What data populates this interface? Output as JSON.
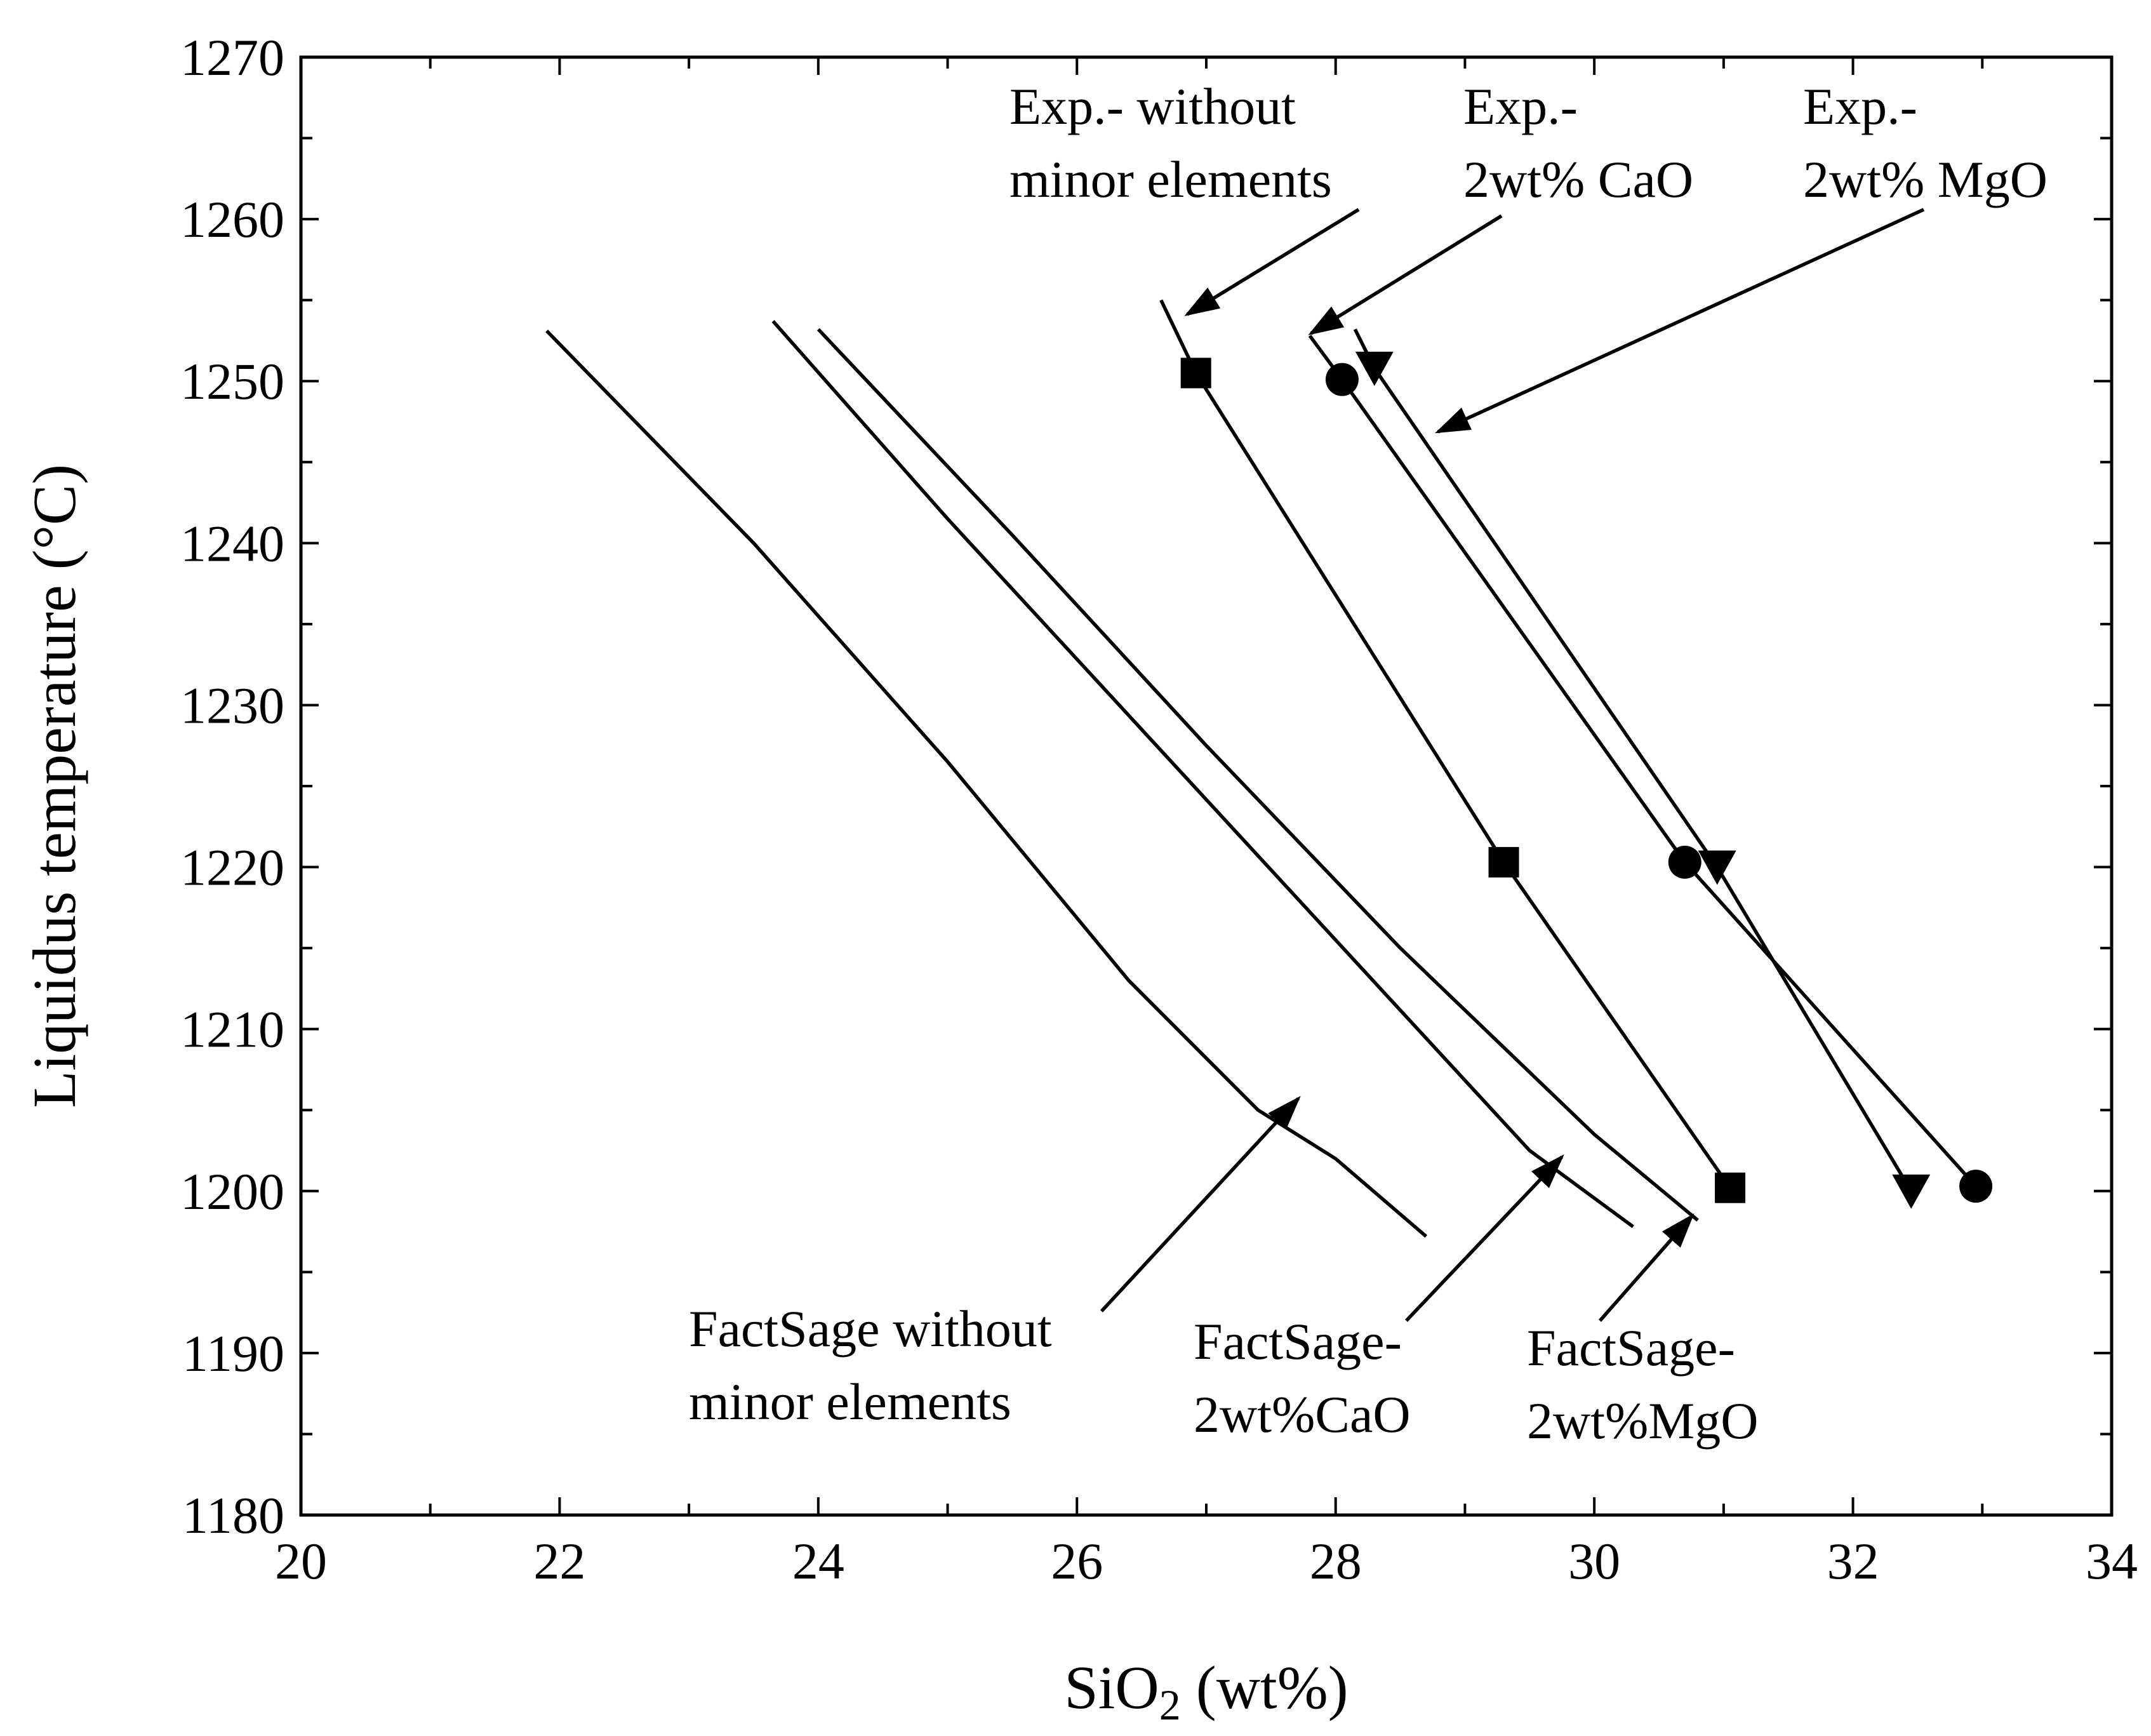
{
  "chart_data": {
    "type": "line",
    "xlabel_main": "SiO",
    "xlabel_sub": "2",
    "xlabel_tail": " (wt%)",
    "ylabel": "Liquidus temperature (°C)",
    "xlim": [
      20,
      34
    ],
    "ylim": [
      1180,
      1270
    ],
    "x_ticks": [
      "20",
      "22",
      "24",
      "26",
      "28",
      "30",
      "32",
      "34"
    ],
    "y_ticks": [
      "1180",
      "1190",
      "1200",
      "1210",
      "1220",
      "1230",
      "1240",
      "1250",
      "1260",
      "1270"
    ],
    "series": [
      {
        "name": "Exp.- without minor elements",
        "kind": "experimental",
        "marker": "square",
        "line": [
          [
            26.65,
            1255
          ],
          [
            26.92,
            1250.5
          ],
          [
            29.3,
            1220.3
          ],
          [
            31.05,
            1200.2
          ]
        ],
        "points": [
          [
            26.92,
            1250.5
          ],
          [
            29.3,
            1220.3
          ],
          [
            31.05,
            1200.2
          ]
        ]
      },
      {
        "name": "Exp.- 2wt% CaO",
        "kind": "experimental",
        "marker": "circle",
        "line": [
          [
            27.8,
            1252.8
          ],
          [
            28.05,
            1250.1
          ],
          [
            30.7,
            1220.3
          ],
          [
            32.95,
            1200.3
          ]
        ],
        "points": [
          [
            28.05,
            1250.1
          ],
          [
            30.7,
            1220.3
          ],
          [
            32.95,
            1200.3
          ]
        ]
      },
      {
        "name": "Exp.- 2wt% MgO",
        "kind": "experimental",
        "marker": "triangle-down",
        "line": [
          [
            28.15,
            1253.2
          ],
          [
            28.3,
            1250.8
          ],
          [
            30.95,
            1220.0
          ],
          [
            32.45,
            1200.0
          ]
        ],
        "points": [
          [
            28.3,
            1250.8
          ],
          [
            30.95,
            1220.0
          ],
          [
            32.45,
            1200.0
          ]
        ]
      },
      {
        "name": "FactSage without minor elements",
        "kind": "model",
        "line": [
          [
            21.9,
            1253.1
          ],
          [
            23.5,
            1240
          ],
          [
            25.0,
            1226.5
          ],
          [
            26.4,
            1213
          ],
          [
            27.4,
            1205
          ],
          [
            28.0,
            1202
          ],
          [
            28.7,
            1197.2
          ]
        ]
      },
      {
        "name": "FactSage- 2wt%CaO",
        "kind": "model",
        "line": [
          [
            23.65,
            1253.7
          ],
          [
            25.0,
            1241.5
          ],
          [
            26.5,
            1228.5
          ],
          [
            28.0,
            1215.5
          ],
          [
            29.5,
            1202.5
          ],
          [
            30.3,
            1197.8
          ]
        ]
      },
      {
        "name": "FactSage- 2wt%MgO",
        "kind": "model",
        "line": [
          [
            24.0,
            1253.2
          ],
          [
            25.5,
            1240.5
          ],
          [
            27.0,
            1227.5
          ],
          [
            28.5,
            1215
          ],
          [
            30.0,
            1203.5
          ],
          [
            30.8,
            1198.2
          ]
        ]
      }
    ],
    "annotations": [
      {
        "lines": [
          "Exp.- without",
          "minor elements"
        ],
        "series": "Exp.- without minor elements"
      },
      {
        "lines": [
          "Exp.-",
          "2wt% CaO"
        ],
        "series": "Exp.- 2wt% CaO"
      },
      {
        "lines": [
          "Exp.-",
          "2wt% MgO"
        ],
        "series": "Exp.- 2wt% MgO"
      },
      {
        "lines": [
          "FactSage without",
          "minor elements"
        ],
        "series": "FactSage without minor elements"
      },
      {
        "lines": [
          "FactSage-",
          "2wt%CaO"
        ],
        "series": "FactSage- 2wt%CaO"
      },
      {
        "lines": [
          "FactSage-",
          "2wt%MgO"
        ],
        "series": "FactSage- 2wt%MgO"
      }
    ]
  }
}
